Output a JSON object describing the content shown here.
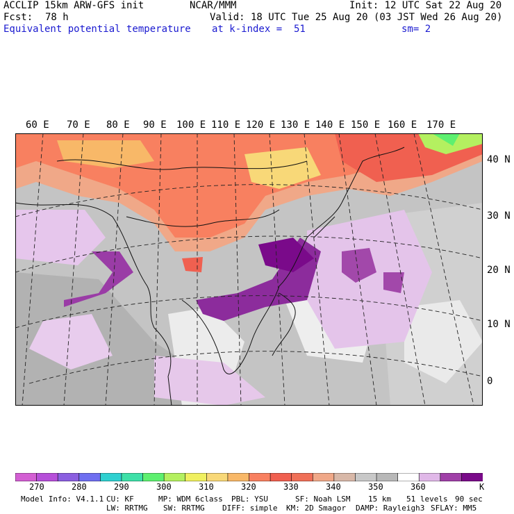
{
  "header": {
    "model": "ACCLIP 15km ARW-GFS init",
    "org": "NCAR/MMM",
    "init": "Init: 12 UTC Sat 22 Aug 20",
    "fcst_label": "Fcst:",
    "fcst_value": "78 h",
    "valid": "Valid: 18 UTC Tue 25 Aug 20 (03 JST Wed 26 Aug 20)",
    "field": "Equivalent potential temperature",
    "level": "at k-index =  51",
    "smoothing": "sm= 2"
  },
  "map": {
    "projection_type": "lambert-conformal",
    "lon_labels": [
      "60 E",
      "70 E",
      "80 E",
      "90 E",
      "100 E",
      "110 E",
      "120 E",
      "130 E",
      "140 E",
      "150 E",
      "160 E",
      "170 E"
    ],
    "lat_labels": [
      "40 N",
      "30 N",
      "20 N",
      "10 N",
      "0"
    ]
  },
  "colorbar": {
    "colors": [
      "#d35fd3",
      "#b64fd9",
      "#8b5fe0",
      "#6f6ff0",
      "#2fd0d0",
      "#3ee0a8",
      "#5ef070",
      "#b4f060",
      "#f0f060",
      "#f8d878",
      "#f8b868",
      "#f88060",
      "#f06050",
      "#f07058",
      "#f0a888",
      "#d8b8a8",
      "#c8c8c8",
      "#b8b8b8",
      "#ffffff",
      "#e0b8e8",
      "#a040a8",
      "#7a0a8a"
    ],
    "labels": [
      "270",
      "280",
      "290",
      "300",
      "310",
      "320",
      "330",
      "340",
      "350",
      "360"
    ],
    "unit": "K"
  },
  "footer": {
    "line1": [
      "Model Info: V4.1.1",
      "CU: KF",
      "MP: WDM 6class",
      "PBL: YSU",
      "SF: Noah LSM",
      "15 km",
      "51 levels",
      "90 sec"
    ],
    "line2": [
      "LW: RRTMG",
      "SW: RRTMG",
      "DIFF: simple",
      "KM: 2D Smagor",
      "DAMP: Rayleigh3",
      "SFLAY: MM5"
    ]
  }
}
